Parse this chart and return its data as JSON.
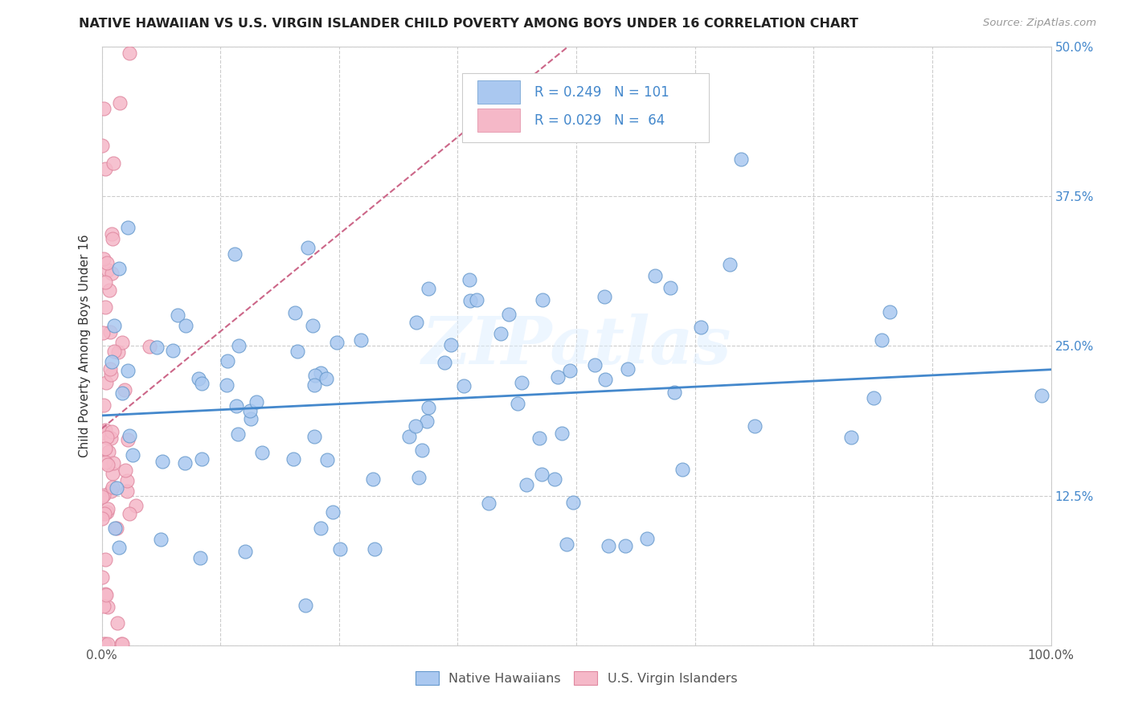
{
  "title": "NATIVE HAWAIIAN VS U.S. VIRGIN ISLANDER CHILD POVERTY AMONG BOYS UNDER 16 CORRELATION CHART",
  "source": "Source: ZipAtlas.com",
  "ylabel": "Child Poverty Among Boys Under 16",
  "xlim": [
    0.0,
    1.0
  ],
  "ylim": [
    0.0,
    0.5
  ],
  "xticks": [
    0.0,
    0.125,
    0.25,
    0.375,
    0.5,
    0.625,
    0.75,
    0.875,
    1.0
  ],
  "xticklabels": [
    "0.0%",
    "",
    "",
    "",
    "",
    "",
    "",
    "",
    "100.0%"
  ],
  "yticks": [
    0.0,
    0.125,
    0.25,
    0.375,
    0.5
  ],
  "yticklabels_left": [
    "",
    "",
    "",
    "",
    ""
  ],
  "yticklabels_right": [
    "",
    "12.5%",
    "25.0%",
    "37.5%",
    "50.0%"
  ],
  "blue_color": "#aac8f0",
  "blue_edge": "#6699cc",
  "pink_color": "#f5b8c8",
  "pink_edge": "#e088a0",
  "line_blue": "#4488cc",
  "line_pink": "#cc6688",
  "background": "#ffffff",
  "watermark": "ZIPatlas",
  "legend_R_blue": "0.249",
  "legend_N_blue": "101",
  "legend_R_pink": "0.029",
  "legend_N_pink": "64",
  "R_blue": 0.249,
  "R_pink": 0.029,
  "seed": 42,
  "n_blue": 101,
  "n_pink": 64
}
